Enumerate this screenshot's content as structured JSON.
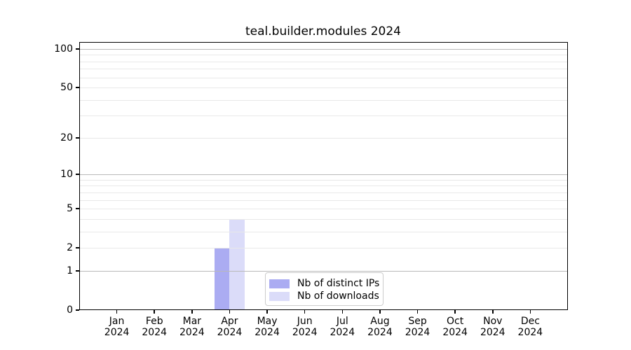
{
  "chart_data": {
    "type": "bar",
    "title": "teal.builder.modules 2024",
    "categories": [
      "Jan",
      "Feb",
      "Mar",
      "Apr",
      "May",
      "Jun",
      "Jul",
      "Aug",
      "Sep",
      "Oct",
      "Nov",
      "Dec"
    ],
    "x_tick_second_line": "2024",
    "series": [
      {
        "name": "Nb of distinct IPs",
        "color": "#abacf2",
        "values": [
          0,
          0,
          0,
          2,
          0,
          0,
          0,
          0,
          0,
          0,
          0,
          0
        ]
      },
      {
        "name": "Nb of downloads",
        "color": "#dbdcf9",
        "values": [
          0,
          0,
          0,
          4,
          0,
          0,
          0,
          0,
          0,
          0,
          0,
          0
        ]
      }
    ],
    "y_scale": "log10(1+y)",
    "ylim": [
      0,
      100
    ],
    "y_ticks": [
      0,
      1,
      2,
      5,
      10,
      20,
      50,
      100
    ],
    "y_major_gridlines": [
      1,
      10,
      100
    ],
    "y_minor_gridlines": [
      2,
      3,
      4,
      5,
      6,
      7,
      8,
      9,
      20,
      30,
      40,
      50,
      60,
      70,
      80,
      90
    ],
    "grid": true,
    "legend_position": "lower center"
  },
  "colors": {
    "background": "#ffffff",
    "axis": "#000000",
    "text": "#000000",
    "grid_major": "#b9b9b9",
    "grid_minor": "#e8e8e8",
    "legend_border": "#cccccc",
    "bar_distinct_ips": "#abacf2",
    "bar_downloads": "#dbdcf9"
  }
}
